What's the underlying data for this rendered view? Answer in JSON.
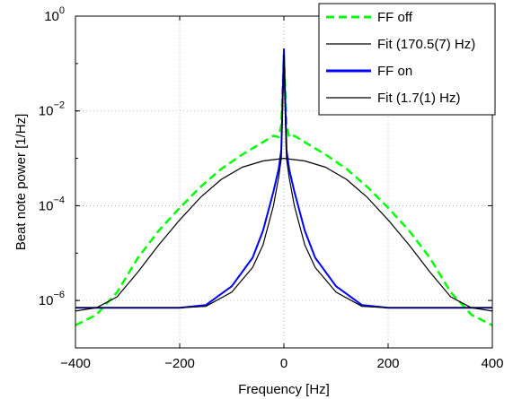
{
  "chart_data": {
    "type": "line",
    "xlabel": "Frequency [Hz]",
    "ylabel": "Beat note power [1/Hz]",
    "xlim": [
      -400,
      400
    ],
    "ylim": [
      1e-07,
      1
    ],
    "yscale": "log",
    "grid": true,
    "legend_position": "top-right",
    "x_ticks": [
      "−400",
      "−200",
      "0",
      "200",
      "400"
    ],
    "x_tick_values": [
      -400,
      -200,
      0,
      200,
      400
    ],
    "y_ticks": [
      {
        "base": "10",
        "exp": "0",
        "value": 1
      },
      {
        "base": "10",
        "exp": "−2",
        "value": 0.01
      },
      {
        "base": "10",
        "exp": "−4",
        "value": 0.0001
      },
      {
        "base": "10",
        "exp": "−6",
        "value": 1e-06
      }
    ],
    "series": [
      {
        "name": "FF off",
        "color": "#00ff00",
        "style": "dashed",
        "x": [
          -400,
          -360,
          -320,
          -280,
          -240,
          -200,
          -160,
          -120,
          -80,
          -40,
          -20,
          -10,
          -5,
          0,
          5,
          10,
          20,
          40,
          80,
          120,
          160,
          200,
          240,
          280,
          320,
          360,
          400
        ],
        "y": [
          3e-07,
          5e-07,
          1.5e-06,
          8e-06,
          3e-05,
          9e-05,
          0.00025,
          0.0006,
          0.0012,
          0.0022,
          0.003,
          0.0028,
          0.005,
          0.15,
          0.005,
          0.0028,
          0.003,
          0.0022,
          0.0012,
          0.0006,
          0.00025,
          9e-05,
          3e-05,
          8e-06,
          1.5e-06,
          5e-07,
          3e-07
        ]
      },
      {
        "name": "Fit (170.5(7) Hz)",
        "color": "#000000",
        "style": "solid",
        "x": [
          -400,
          -360,
          -320,
          -280,
          -240,
          -200,
          -160,
          -120,
          -80,
          -40,
          0,
          40,
          80,
          120,
          160,
          200,
          240,
          280,
          320,
          360,
          400
        ],
        "y": [
          6e-07,
          7e-07,
          1.2e-06,
          4e-06,
          1.5e-05,
          5e-05,
          0.00015,
          0.00036,
          0.00065,
          0.00088,
          0.001,
          0.00088,
          0.00065,
          0.00036,
          0.00015,
          5e-05,
          1.5e-05,
          4e-06,
          1.2e-06,
          7e-07,
          6e-07
        ]
      },
      {
        "name": "FF on",
        "color": "#0000ff",
        "style": "solid",
        "x": [
          -400,
          -300,
          -200,
          -150,
          -100,
          -60,
          -40,
          -20,
          -10,
          -5,
          0,
          5,
          10,
          20,
          40,
          60,
          100,
          150,
          200,
          300,
          400
        ],
        "y": [
          7e-07,
          7e-07,
          7e-07,
          8e-07,
          2e-06,
          8e-06,
          3e-05,
          0.0002,
          0.0006,
          0.0015,
          0.2,
          0.0015,
          0.0006,
          0.0002,
          3e-05,
          8e-06,
          2e-06,
          8e-07,
          7e-07,
          7e-07,
          7e-07
        ]
      },
      {
        "name": "Fit (1.7(1) Hz)",
        "color": "#000000",
        "style": "solid",
        "x": [
          -400,
          -300,
          -200,
          -150,
          -100,
          -60,
          -40,
          -20,
          -10,
          -5,
          0,
          5,
          10,
          20,
          40,
          60,
          100,
          150,
          200,
          300,
          400
        ],
        "y": [
          7e-07,
          7e-07,
          7e-07,
          7.5e-07,
          1.5e-06,
          5e-06,
          1.5e-05,
          0.0001,
          0.0004,
          0.001,
          0.15,
          0.001,
          0.0004,
          0.0001,
          1.5e-05,
          5e-06,
          1.5e-06,
          7.5e-07,
          7e-07,
          7e-07,
          7e-07
        ]
      }
    ]
  }
}
